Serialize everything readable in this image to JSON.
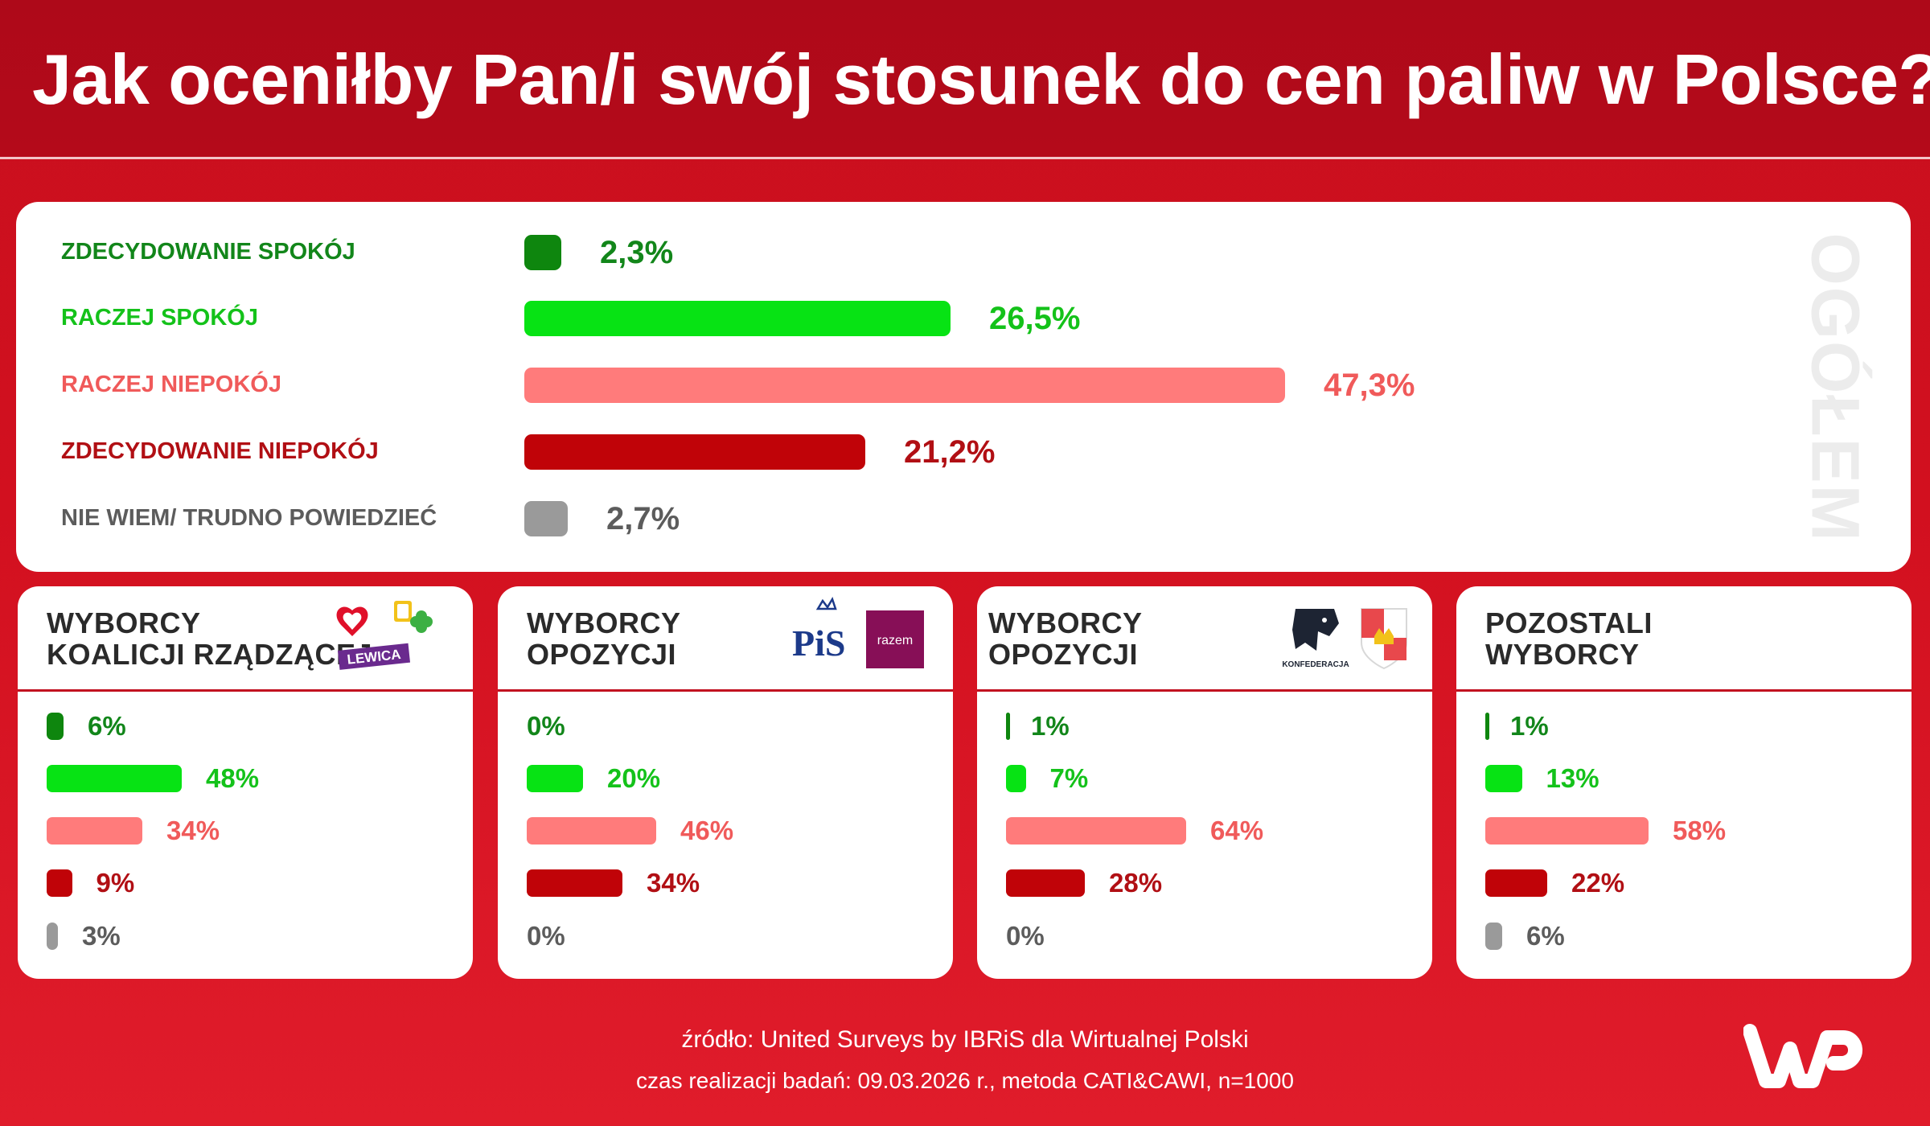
{
  "title": "Jak oceniłby Pan/i swój stosunek do cen paliw w Polsce?",
  "colors": {
    "dark_green": "#0e860e",
    "green": "#07e314",
    "pink": "#ff7b7b",
    "dark_red": "#c00308",
    "gray": "#9a9a9a",
    "label_dark_green": "#12861a",
    "label_green": "#14c21a",
    "label_pink": "#f05a5a",
    "label_dark_red": "#b10f14",
    "label_gray": "#5c5c5c"
  },
  "chart_data": [
    {
      "type": "bar",
      "name": "OGÓŁEM",
      "categories": [
        "ZDECYDOWANIE SPOKÓJ",
        "RACZEJ SPOKÓJ",
        "RACZEJ NIEPOKÓJ",
        "ZDECYDOWANIE NIEPOKÓJ",
        "NIE WIEM/ TRUDNO POWIEDZIEĆ"
      ],
      "values": [
        2.3,
        26.5,
        47.3,
        21.2,
        2.7
      ],
      "value_labels": [
        "2,3%",
        "26,5%",
        "47,3%",
        "21,2%",
        "2,7%"
      ],
      "orientation": "horizontal"
    },
    {
      "type": "bar",
      "title_lines": [
        "WYBORCY",
        "KOALICJI RZĄDZĄCEJ"
      ],
      "values": [
        6,
        48,
        34,
        9,
        3
      ],
      "value_labels": [
        "6%",
        "48%",
        "34%",
        "9%",
        "3%"
      ],
      "logos": [
        "LEWICA"
      ]
    },
    {
      "type": "bar",
      "title_lines": [
        "WYBORCY",
        "OPOZYCJI"
      ],
      "values": [
        0,
        20,
        46,
        34,
        0
      ],
      "value_labels": [
        "0%",
        "20%",
        "46%",
        "34%",
        "0%"
      ],
      "logos": [
        "PiS",
        "razem"
      ]
    },
    {
      "type": "bar",
      "title_lines": [
        "WYBORCY",
        "OPOZYCJI"
      ],
      "values": [
        1,
        7,
        64,
        28,
        0
      ],
      "value_labels": [
        "1%",
        "7%",
        "64%",
        "28%",
        "0%"
      ],
      "logos": [
        "KONFEDERACJA"
      ]
    },
    {
      "type": "bar",
      "title_lines": [
        "POZOSTALI",
        "WYBORCY"
      ],
      "values": [
        1,
        13,
        58,
        22,
        6
      ],
      "value_labels": [
        "1%",
        "13%",
        "58%",
        "22%",
        "6%"
      ],
      "logos": []
    }
  ],
  "footer": {
    "source": "źródło: United Surveys by IBRiS dla Wirtualnej Polski",
    "details": "czas realizacji badań: 09.03.2026 r., metoda CATI&CAWI, n=1000"
  },
  "brand": "WP"
}
